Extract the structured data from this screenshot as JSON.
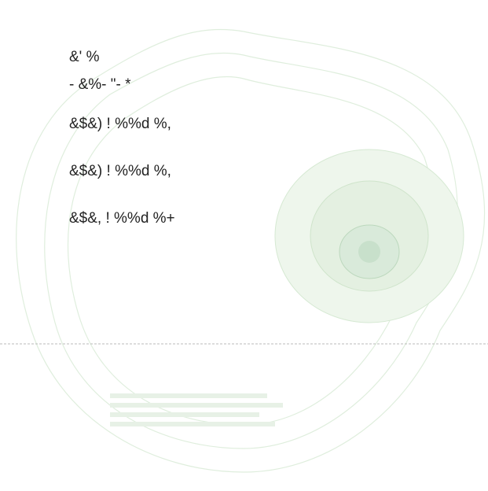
{
  "lines": [
    "&' %",
    "- &%- \"- *",
    "&$&) ! %%d %,",
    "&$&) ! %%d %,",
    "&$&, ! %%d %+"
  ]
}
